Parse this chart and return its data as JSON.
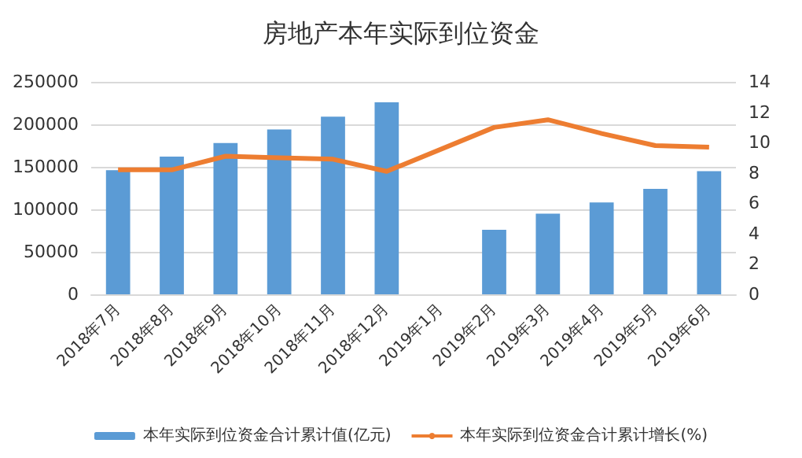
{
  "chart_data": {
    "type": "bar",
    "title": "房地产本年实际到位资金",
    "categories": [
      "2018年7月",
      "2018年8月",
      "2018年9月",
      "2018年10月",
      "2018年11月",
      "2018年12月",
      "2019年1月",
      "2019年2月",
      "2019年3月",
      "2019年4月",
      "2019年5月",
      "2019年6月"
    ],
    "series": [
      {
        "name": "本年实际到位资金合计累计值(亿元)",
        "color": "#5b9bd5",
        "values": [
          146000,
          162000,
          178000,
          194000,
          209000,
          226000,
          null,
          76000,
          95000,
          108000,
          124000,
          145000
        ]
      },
      {
        "name": "本年实际到位资金合计累计增长(%)",
        "type": "line",
        "axis": "y2",
        "color": "#ed7d31",
        "values": [
          8.2,
          8.2,
          9.1,
          9.0,
          8.9,
          8.1,
          null,
          11.0,
          11.5,
          10.6,
          9.8,
          9.7
        ]
      }
    ],
    "ylim": [
      0,
      250000
    ],
    "yticks": [
      0,
      50000,
      100000,
      150000,
      200000,
      250000
    ],
    "y2lim": [
      0,
      14
    ],
    "y2ticks": [
      0,
      2,
      4,
      6,
      8,
      10,
      12,
      14
    ],
    "grid": "y",
    "legend": "bottom",
    "marker": "none"
  }
}
